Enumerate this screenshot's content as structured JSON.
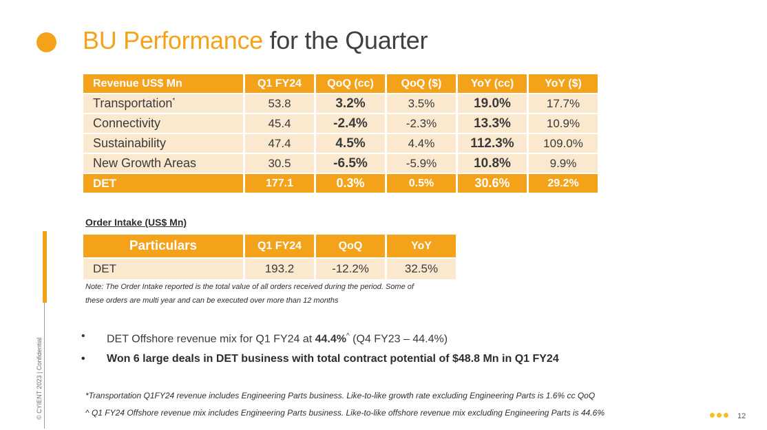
{
  "title": {
    "accent": "BU Performance",
    "rest": "for the Quarter"
  },
  "revenue_table": {
    "headers": [
      "Revenue US$ Mn",
      "Q1 FY24",
      "QoQ (cc)",
      "QoQ ($)",
      "YoY (cc)",
      "YoY ($)"
    ],
    "rows": [
      {
        "name": "Transportation",
        "mark": "*",
        "q1": "53.8",
        "qoq_cc": "3.2%",
        "qoq_usd": "3.5%",
        "yoy_cc": "19.0%",
        "yoy_usd": "17.7%"
      },
      {
        "name": "Connectivity",
        "q1": "45.4",
        "qoq_cc": "-2.4%",
        "qoq_usd": "-2.3%",
        "yoy_cc": "13.3%",
        "yoy_usd": "10.9%"
      },
      {
        "name": "Sustainability",
        "q1": "47.4",
        "qoq_cc": "4.5%",
        "qoq_usd": "4.4%",
        "yoy_cc": "112.3%",
        "yoy_usd": "109.0%"
      },
      {
        "name": "New Growth Areas",
        "q1": "30.5",
        "qoq_cc": "-6.5%",
        "qoq_usd": "-5.9%",
        "yoy_cc": "10.8%",
        "yoy_usd": "9.9%"
      }
    ],
    "total": {
      "name": "DET",
      "q1": "177.1",
      "qoq_cc": "0.3%",
      "qoq_usd": "0.5%",
      "yoy_cc": "30.6%",
      "yoy_usd": "29.2%"
    }
  },
  "order_intake": {
    "title": "Order Intake (US$ Mn)",
    "headers": [
      "Particulars",
      "Q1 FY24",
      "QoQ",
      "YoY"
    ],
    "row": {
      "name": "DET",
      "q1": "193.2",
      "qoq": "-12.2%",
      "yoy": "32.5%"
    },
    "note_line1": "Note: The Order Intake reported is the total value of all orders received during the period. Some of",
    "note_line2": "these orders are multi year and can be executed over more than 12 months"
  },
  "bullets": {
    "b1_pre": "DET Offshore revenue mix for Q1 FY24 at ",
    "b1_value": "44.4%",
    "b1_mark": "^",
    "b1_post": " (Q4 FY23 – 44.4%)",
    "b2": "Won 6 large deals in DET business with total contract potential of  $48.8 Mn in Q1 FY24"
  },
  "footnotes": {
    "f1": "*Transportation Q1FY24 revenue includes Engineering Parts business. Like-to-like growth rate excluding Engineering Parts is 1.6% cc QoQ",
    "f2": "^ Q1 FY24 Offshore revenue mix includes Engineering Parts business. Like-to-like offshore revenue mix excluding Engineering Parts is 44.6%"
  },
  "side_label": "© CYIENT 2023  |  Confidential",
  "page_number": "12",
  "colors": {
    "accent": "#f5a21b",
    "cell": "#fbe9cf",
    "dots": "#f5c022"
  }
}
